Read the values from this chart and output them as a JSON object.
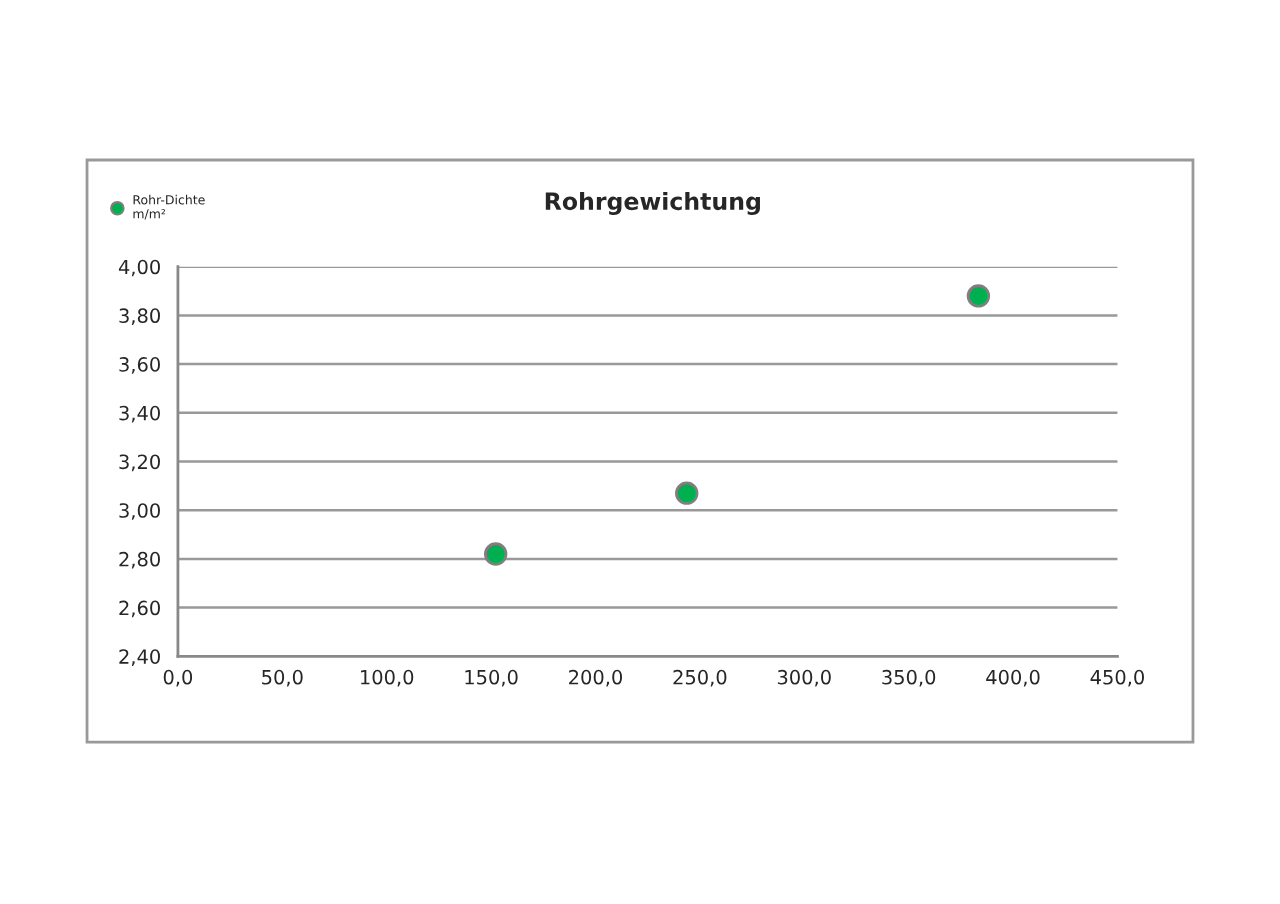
{
  "chart_data": {
    "type": "scatter",
    "title": "Rohrgewichtung",
    "x": [
      152.2,
      243.7,
      383.4
    ],
    "series": [
      {
        "name": "Rohr-Dichte\nm/m²",
        "color": "#00b050",
        "values": [
          2.82,
          3.07,
          3.88
        ]
      }
    ],
    "xlim": [
      0,
      450
    ],
    "xticks": [
      {
        "value": 0,
        "label": "0,0"
      },
      {
        "value": 50,
        "label": "50,0"
      },
      {
        "value": 100,
        "label": "100,0"
      },
      {
        "value": 150,
        "label": "150,0"
      },
      {
        "value": 200,
        "label": "200,0"
      },
      {
        "value": 250,
        "label": "250,0"
      },
      {
        "value": 300,
        "label": "300,0"
      },
      {
        "value": 350,
        "label": "350,0"
      },
      {
        "value": 400,
        "label": "400,0"
      },
      {
        "value": 450,
        "label": "450,0"
      }
    ],
    "ylim": [
      2.4,
      4.0
    ],
    "yticks": [
      {
        "value": 2.4,
        "label": "2,40"
      },
      {
        "value": 2.6,
        "label": "2,60"
      },
      {
        "value": 2.8,
        "label": "2,80"
      },
      {
        "value": 3.0,
        "label": "3,00"
      },
      {
        "value": 3.2,
        "label": "3,20"
      },
      {
        "value": 3.4,
        "label": "3,40"
      },
      {
        "value": 3.6,
        "label": "3,60"
      },
      {
        "value": 3.8,
        "label": "3,80"
      },
      {
        "value": 4.0,
        "label": "4,00"
      }
    ],
    "grid": "y",
    "legend": "top left",
    "marker": "circle"
  }
}
